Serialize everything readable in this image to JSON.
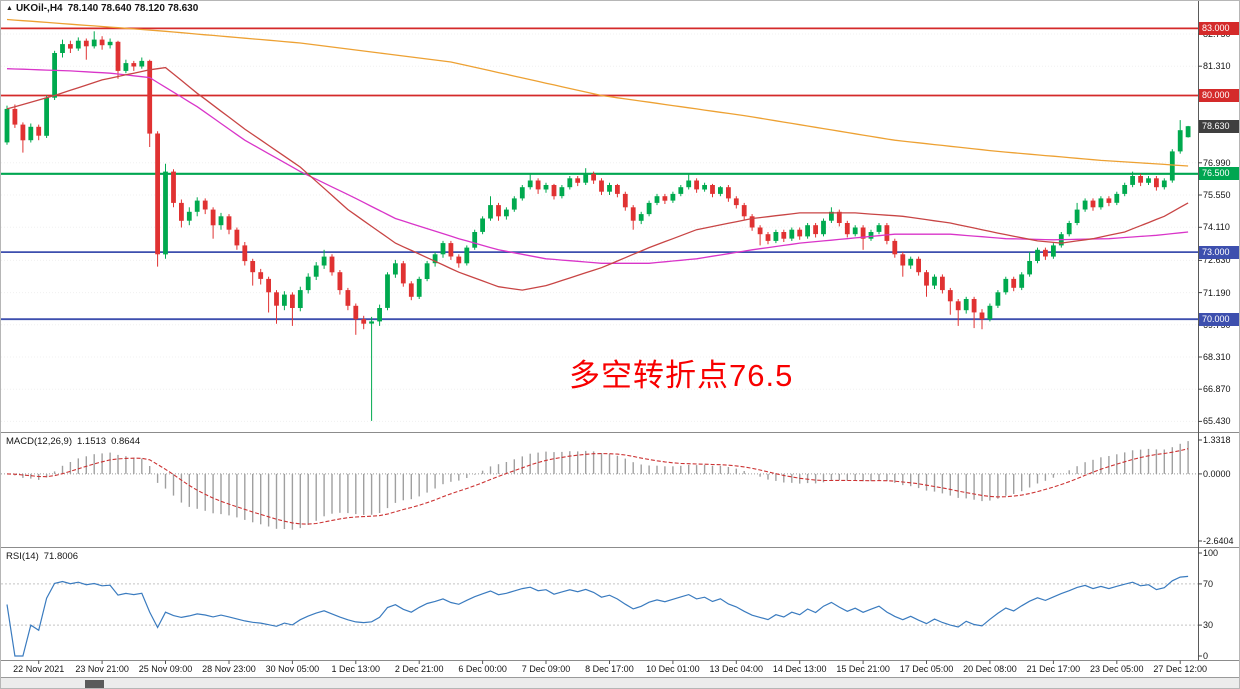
{
  "chart_data": {
    "type": "candlestick",
    "title": {
      "symbol": "UKOil-,H4",
      "ohlc": "78.140 78.640 78.120 78.630"
    },
    "colors": {
      "up": "#00a94e",
      "down": "#e03232",
      "background": "#ffffff"
    },
    "price_axis": {
      "min": 65.0,
      "max": 83.6,
      "labels": [
        {
          "text": "82.750",
          "value": 82.75
        },
        {
          "text": "81.310",
          "value": 81.31
        },
        {
          "text": "76.990",
          "value": 76.99
        },
        {
          "text": "75.550",
          "value": 75.55
        },
        {
          "text": "74.110",
          "value": 74.11
        },
        {
          "text": "72.630",
          "value": 72.63
        },
        {
          "text": "71.190",
          "value": 71.19
        },
        {
          "text": "69.750",
          "value": 69.75
        },
        {
          "text": "68.310",
          "value": 68.31
        },
        {
          "text": "66.870",
          "value": 66.87
        },
        {
          "text": "65.430",
          "value": 65.43
        }
      ],
      "badges": [
        {
          "text": "83.000",
          "value": 83.0,
          "color": "#d42a2a"
        },
        {
          "text": "80.000",
          "value": 80.0,
          "color": "#d42a2a"
        },
        {
          "text": "78.630",
          "value": 78.63,
          "color": "#3f3f3f"
        },
        {
          "text": "76.500",
          "value": 76.5,
          "color": "#00a651"
        },
        {
          "text": "73.000",
          "value": 73.0,
          "color": "#3d4fae"
        },
        {
          "text": "70.000",
          "value": 70.0,
          "color": "#3d4fae"
        }
      ]
    },
    "hlines": [
      {
        "text": "83.000",
        "value": 83.0,
        "color": "#d42a2a",
        "width": 1.8
      },
      {
        "text": "80.000",
        "value": 80.0,
        "color": "#d42a2a",
        "width": 1.8
      },
      {
        "text": "76.500",
        "value": 76.5,
        "color": "#00a651",
        "width": 2.2
      },
      {
        "text": "73.000",
        "value": 73.0,
        "color": "#3d4fae",
        "width": 1.8
      },
      {
        "text": "70.000",
        "value": 70.0,
        "color": "#3d4fae",
        "width": 1.8
      }
    ],
    "time_labels": [
      {
        "i": 4,
        "text": "22 Nov 2021"
      },
      {
        "i": 12,
        "text": "23 Nov 21:00"
      },
      {
        "i": 20,
        "text": "25 Nov 09:00"
      },
      {
        "i": 28,
        "text": "28 Nov 23:00"
      },
      {
        "i": 36,
        "text": "30 Nov 05:00"
      },
      {
        "i": 44,
        "text": "1 Dec 13:00"
      },
      {
        "i": 52,
        "text": "2 Dec 21:00"
      },
      {
        "i": 60,
        "text": "6 Dec 00:00"
      },
      {
        "i": 68,
        "text": "7 Dec 09:00"
      },
      {
        "i": 76,
        "text": "8 Dec 17:00"
      },
      {
        "i": 84,
        "text": "10 Dec 01:00"
      },
      {
        "i": 92,
        "text": "13 Dec 04:00"
      },
      {
        "i": 100,
        "text": "14 Dec 13:00"
      },
      {
        "i": 108,
        "text": "15 Dec 21:00"
      },
      {
        "i": 116,
        "text": "17 Dec 05:00"
      },
      {
        "i": 124,
        "text": "20 Dec 08:00"
      },
      {
        "i": 132,
        "text": "21 Dec 17:00"
      },
      {
        "i": 140,
        "text": "23 Dec 05:00"
      },
      {
        "i": 148,
        "text": "27 Dec 12:00"
      }
    ],
    "candles": [
      [
        77.9,
        79.55,
        77.8,
        79.4
      ],
      [
        79.4,
        79.6,
        78.55,
        78.7
      ],
      [
        78.7,
        78.8,
        77.45,
        78.0
      ],
      [
        78.0,
        78.75,
        77.9,
        78.6
      ],
      [
        78.6,
        78.7,
        78.0,
        78.2
      ],
      [
        78.2,
        80.0,
        78.1,
        79.9
      ],
      [
        79.9,
        82.0,
        79.8,
        81.9
      ],
      [
        81.9,
        82.5,
        81.7,
        82.3
      ],
      [
        82.3,
        82.45,
        81.9,
        82.1
      ],
      [
        82.1,
        82.6,
        82.0,
        82.45
      ],
      [
        82.45,
        82.55,
        81.6,
        82.2
      ],
      [
        82.2,
        82.87,
        82.1,
        82.5
      ],
      [
        82.5,
        82.65,
        82.05,
        82.25
      ],
      [
        82.25,
        82.55,
        82.1,
        82.4
      ],
      [
        82.4,
        82.45,
        80.75,
        81.1
      ],
      [
        81.1,
        81.6,
        81.0,
        81.45
      ],
      [
        81.45,
        81.55,
        81.1,
        81.3
      ],
      [
        81.3,
        81.7,
        81.2,
        81.55
      ],
      [
        81.55,
        81.6,
        77.7,
        78.3
      ],
      [
        78.3,
        78.4,
        72.35,
        72.9
      ],
      [
        72.9,
        76.95,
        72.7,
        76.6
      ],
      [
        76.6,
        76.7,
        75.0,
        75.2
      ],
      [
        75.2,
        75.35,
        74.1,
        74.4
      ],
      [
        74.4,
        75.0,
        74.2,
        74.8
      ],
      [
        74.8,
        75.45,
        74.6,
        75.3
      ],
      [
        75.3,
        75.4,
        74.7,
        74.9
      ],
      [
        74.9,
        75.0,
        73.6,
        74.2
      ],
      [
        74.2,
        74.75,
        74.0,
        74.6
      ],
      [
        74.6,
        74.7,
        73.8,
        74.0
      ],
      [
        74.0,
        74.1,
        73.1,
        73.3
      ],
      [
        73.3,
        73.45,
        72.4,
        72.6
      ],
      [
        72.6,
        72.7,
        71.5,
        72.1
      ],
      [
        72.1,
        72.25,
        71.55,
        71.8
      ],
      [
        71.8,
        71.9,
        70.3,
        71.2
      ],
      [
        71.2,
        71.3,
        69.8,
        70.6
      ],
      [
        70.6,
        71.25,
        70.4,
        71.1
      ],
      [
        71.1,
        71.2,
        69.7,
        70.5
      ],
      [
        70.5,
        71.45,
        70.35,
        71.3
      ],
      [
        71.3,
        72.05,
        71.15,
        71.9
      ],
      [
        71.9,
        72.55,
        71.75,
        72.4
      ],
      [
        72.4,
        73.1,
        72.25,
        72.8
      ],
      [
        72.8,
        72.9,
        71.95,
        72.1
      ],
      [
        72.1,
        72.2,
        71.1,
        71.3
      ],
      [
        71.3,
        71.4,
        70.4,
        70.6
      ],
      [
        70.6,
        70.7,
        69.3,
        70.0
      ],
      [
        70.0,
        70.15,
        69.55,
        69.8
      ],
      [
        69.8,
        70.1,
        65.45,
        69.9
      ],
      [
        69.9,
        70.65,
        69.7,
        70.5
      ],
      [
        70.5,
        72.1,
        70.4,
        72.0
      ],
      [
        72.0,
        72.65,
        71.85,
        72.5
      ],
      [
        72.5,
        72.6,
        71.45,
        71.6
      ],
      [
        71.6,
        71.7,
        70.85,
        71.0
      ],
      [
        71.0,
        71.9,
        70.9,
        71.8
      ],
      [
        71.8,
        72.6,
        71.7,
        72.5
      ],
      [
        72.5,
        73.0,
        72.35,
        72.9
      ],
      [
        72.9,
        73.5,
        72.75,
        73.4
      ],
      [
        73.4,
        73.5,
        72.65,
        72.8
      ],
      [
        72.8,
        72.9,
        72.3,
        72.5
      ],
      [
        72.5,
        73.3,
        72.4,
        73.2
      ],
      [
        73.2,
        74.0,
        73.1,
        73.9
      ],
      [
        73.9,
        74.6,
        73.8,
        74.5
      ],
      [
        74.5,
        75.5,
        74.4,
        75.1
      ],
      [
        75.1,
        75.2,
        74.4,
        74.6
      ],
      [
        74.6,
        75.0,
        74.45,
        74.9
      ],
      [
        74.9,
        75.5,
        74.8,
        75.4
      ],
      [
        75.4,
        76.0,
        75.3,
        75.9
      ],
      [
        75.9,
        76.5,
        75.8,
        76.2
      ],
      [
        76.2,
        76.3,
        75.6,
        75.8
      ],
      [
        75.8,
        76.1,
        75.65,
        76.0
      ],
      [
        76.0,
        76.05,
        75.35,
        75.5
      ],
      [
        75.5,
        76.0,
        75.4,
        75.9
      ],
      [
        75.9,
        76.4,
        75.8,
        76.3
      ],
      [
        76.3,
        76.4,
        75.95,
        76.1
      ],
      [
        76.1,
        76.75,
        76.0,
        76.5
      ],
      [
        76.5,
        76.6,
        76.05,
        76.2
      ],
      [
        76.2,
        76.3,
        75.55,
        75.7
      ],
      [
        75.7,
        76.1,
        75.55,
        76.0
      ],
      [
        76.0,
        76.05,
        75.45,
        75.6
      ],
      [
        75.6,
        75.7,
        74.85,
        75.0
      ],
      [
        75.0,
        75.1,
        74.0,
        74.4
      ],
      [
        74.4,
        74.8,
        74.25,
        74.7
      ],
      [
        74.7,
        75.3,
        74.6,
        75.2
      ],
      [
        75.2,
        75.6,
        75.1,
        75.5
      ],
      [
        75.5,
        75.6,
        75.15,
        75.3
      ],
      [
        75.3,
        75.7,
        75.2,
        75.6
      ],
      [
        75.6,
        76.0,
        75.5,
        75.9
      ],
      [
        75.9,
        76.5,
        75.8,
        76.2
      ],
      [
        76.2,
        76.3,
        75.65,
        75.8
      ],
      [
        75.8,
        76.1,
        75.7,
        76.0
      ],
      [
        76.0,
        76.05,
        75.45,
        75.6
      ],
      [
        75.6,
        75.95,
        75.5,
        75.9
      ],
      [
        75.9,
        76.0,
        75.25,
        75.4
      ],
      [
        75.4,
        75.5,
        74.95,
        75.1
      ],
      [
        75.1,
        75.2,
        74.45,
        74.6
      ],
      [
        74.6,
        74.7,
        73.95,
        74.1
      ],
      [
        74.1,
        74.2,
        73.3,
        73.8
      ],
      [
        73.8,
        73.9,
        73.35,
        73.5
      ],
      [
        73.5,
        74.0,
        73.4,
        73.9
      ],
      [
        73.9,
        74.0,
        73.45,
        73.6
      ],
      [
        73.6,
        74.1,
        73.5,
        74.0
      ],
      [
        74.0,
        74.1,
        73.55,
        73.7
      ],
      [
        73.7,
        74.3,
        73.6,
        74.2
      ],
      [
        74.2,
        74.3,
        73.65,
        73.8
      ],
      [
        73.8,
        74.5,
        73.7,
        74.4
      ],
      [
        74.4,
        75.0,
        74.3,
        74.8
      ],
      [
        74.8,
        74.9,
        74.15,
        74.3
      ],
      [
        74.3,
        74.4,
        73.65,
        73.8
      ],
      [
        73.8,
        74.2,
        73.7,
        74.1
      ],
      [
        74.1,
        74.2,
        73.1,
        73.6
      ],
      [
        73.6,
        74.0,
        73.5,
        73.9
      ],
      [
        73.9,
        74.3,
        73.8,
        74.2
      ],
      [
        74.2,
        74.3,
        73.35,
        73.5
      ],
      [
        73.5,
        73.6,
        72.75,
        72.9
      ],
      [
        72.9,
        73.0,
        71.9,
        72.4
      ],
      [
        72.4,
        72.8,
        72.25,
        72.7
      ],
      [
        72.7,
        72.8,
        71.95,
        72.1
      ],
      [
        72.1,
        72.2,
        71.0,
        71.5
      ],
      [
        71.5,
        72.0,
        71.35,
        71.9
      ],
      [
        71.9,
        72.0,
        71.15,
        71.3
      ],
      [
        71.3,
        71.4,
        70.2,
        70.8
      ],
      [
        70.8,
        70.9,
        69.7,
        70.4
      ],
      [
        70.4,
        71.0,
        70.25,
        70.9
      ],
      [
        70.9,
        71.0,
        69.6,
        70.3
      ],
      [
        70.3,
        70.45,
        69.55,
        70.0
      ],
      [
        70.0,
        70.7,
        69.9,
        70.6
      ],
      [
        70.6,
        71.3,
        70.5,
        71.2
      ],
      [
        71.2,
        71.9,
        71.1,
        71.8
      ],
      [
        71.8,
        71.9,
        71.25,
        71.4
      ],
      [
        71.4,
        72.1,
        71.3,
        72.0
      ],
      [
        72.0,
        73.0,
        71.9,
        72.6
      ],
      [
        72.6,
        73.2,
        72.5,
        73.1
      ],
      [
        73.1,
        73.2,
        72.65,
        72.8
      ],
      [
        72.8,
        73.4,
        72.7,
        73.3
      ],
      [
        73.3,
        73.9,
        73.2,
        73.8
      ],
      [
        73.8,
        74.4,
        73.7,
        74.3
      ],
      [
        74.3,
        75.2,
        74.2,
        74.9
      ],
      [
        74.9,
        75.4,
        74.8,
        75.3
      ],
      [
        75.3,
        75.4,
        74.85,
        75.0
      ],
      [
        75.0,
        75.5,
        74.9,
        75.4
      ],
      [
        75.4,
        75.5,
        75.05,
        75.2
      ],
      [
        75.2,
        75.7,
        75.1,
        75.6
      ],
      [
        75.6,
        76.1,
        75.5,
        76.0
      ],
      [
        76.0,
        76.6,
        75.9,
        76.4
      ],
      [
        76.4,
        76.5,
        75.95,
        76.1
      ],
      [
        76.1,
        76.4,
        76.0,
        76.3
      ],
      [
        76.3,
        76.4,
        75.75,
        75.9
      ],
      [
        75.9,
        76.3,
        75.8,
        76.2
      ],
      [
        76.2,
        77.6,
        76.1,
        77.5
      ],
      [
        77.5,
        78.9,
        77.4,
        78.45
      ],
      [
        78.14,
        78.64,
        78.12,
        78.63
      ]
    ],
    "moving_averages": [
      {
        "name": "ma-slow-orange",
        "color": "#eda133",
        "points": [
          [
            0,
            83.4
          ],
          [
            19,
            82.9
          ],
          [
            37,
            82.35
          ],
          [
            56,
            81.5
          ],
          [
            75,
            80.0
          ],
          [
            93,
            79.1
          ],
          [
            112,
            78.0
          ],
          [
            125,
            77.5
          ],
          [
            138,
            77.1
          ],
          [
            149,
            76.85
          ]
        ]
      },
      {
        "name": "ma-long-magenta",
        "color": "#d935c9",
        "points": [
          [
            0,
            81.2
          ],
          [
            8,
            81.1
          ],
          [
            13,
            81.0
          ],
          [
            18,
            80.8
          ],
          [
            24,
            79.5
          ],
          [
            30,
            78.0
          ],
          [
            37,
            76.6
          ],
          [
            44,
            75.4
          ],
          [
            49,
            74.5
          ],
          [
            57,
            73.6
          ],
          [
            62,
            73.1
          ],
          [
            68,
            72.7
          ],
          [
            75,
            72.5
          ],
          [
            81,
            72.5
          ],
          [
            87,
            72.7
          ],
          [
            94,
            73.1
          ],
          [
            100,
            73.4
          ],
          [
            106,
            73.6
          ],
          [
            112,
            73.8
          ],
          [
            119,
            73.8
          ],
          [
            126,
            73.6
          ],
          [
            132,
            73.55
          ],
          [
            139,
            73.6
          ],
          [
            145,
            73.75
          ],
          [
            149,
            73.9
          ]
        ]
      },
      {
        "name": "ma-mid-red",
        "color": "#c84545",
        "points": [
          [
            0,
            79.4
          ],
          [
            6,
            80.0
          ],
          [
            12,
            80.7
          ],
          [
            18,
            81.15
          ],
          [
            20,
            81.25
          ],
          [
            24,
            80.1
          ],
          [
            30,
            78.5
          ],
          [
            37,
            76.8
          ],
          [
            43,
            74.9
          ],
          [
            49,
            73.4
          ],
          [
            57,
            72.1
          ],
          [
            62,
            71.45
          ],
          [
            65,
            71.3
          ],
          [
            68,
            71.5
          ],
          [
            75,
            72.3
          ],
          [
            81,
            73.2
          ],
          [
            87,
            74.0
          ],
          [
            94,
            74.5
          ],
          [
            100,
            74.75
          ],
          [
            107,
            74.75
          ],
          [
            113,
            74.6
          ],
          [
            119,
            74.3
          ],
          [
            125,
            73.85
          ],
          [
            130,
            73.5
          ],
          [
            133,
            73.4
          ],
          [
            137,
            73.6
          ],
          [
            141,
            73.9
          ],
          [
            146,
            74.6
          ],
          [
            149,
            75.2
          ]
        ]
      }
    ],
    "macd": {
      "label": "MACD(12,26,9)",
      "value_main": "1.1513",
      "value_signal": "0.8644",
      "params": [
        12,
        26,
        9
      ],
      "histogram_color": "#a0a0a0",
      "signal_color": "#cc3333",
      "axis_labels": [
        {
          "text": "1.3318",
          "value": 1.3318
        },
        {
          "text": "0.0000",
          "value": 0.0
        },
        {
          "text": "-2.6404",
          "value": -2.6404
        }
      ]
    },
    "rsi": {
      "label": "RSI(14)",
      "value": "71.8006",
      "period": 14,
      "line_color": "#3a7bbf",
      "levels": [
        70,
        30
      ],
      "axis_labels": [
        {
          "text": "100",
          "value": 100
        },
        {
          "text": "70",
          "value": 70
        },
        {
          "text": "30",
          "value": 30
        },
        {
          "text": "0",
          "value": 0
        }
      ]
    },
    "annotation": {
      "text": "多空转折点76.5",
      "color": "#f80000"
    }
  }
}
